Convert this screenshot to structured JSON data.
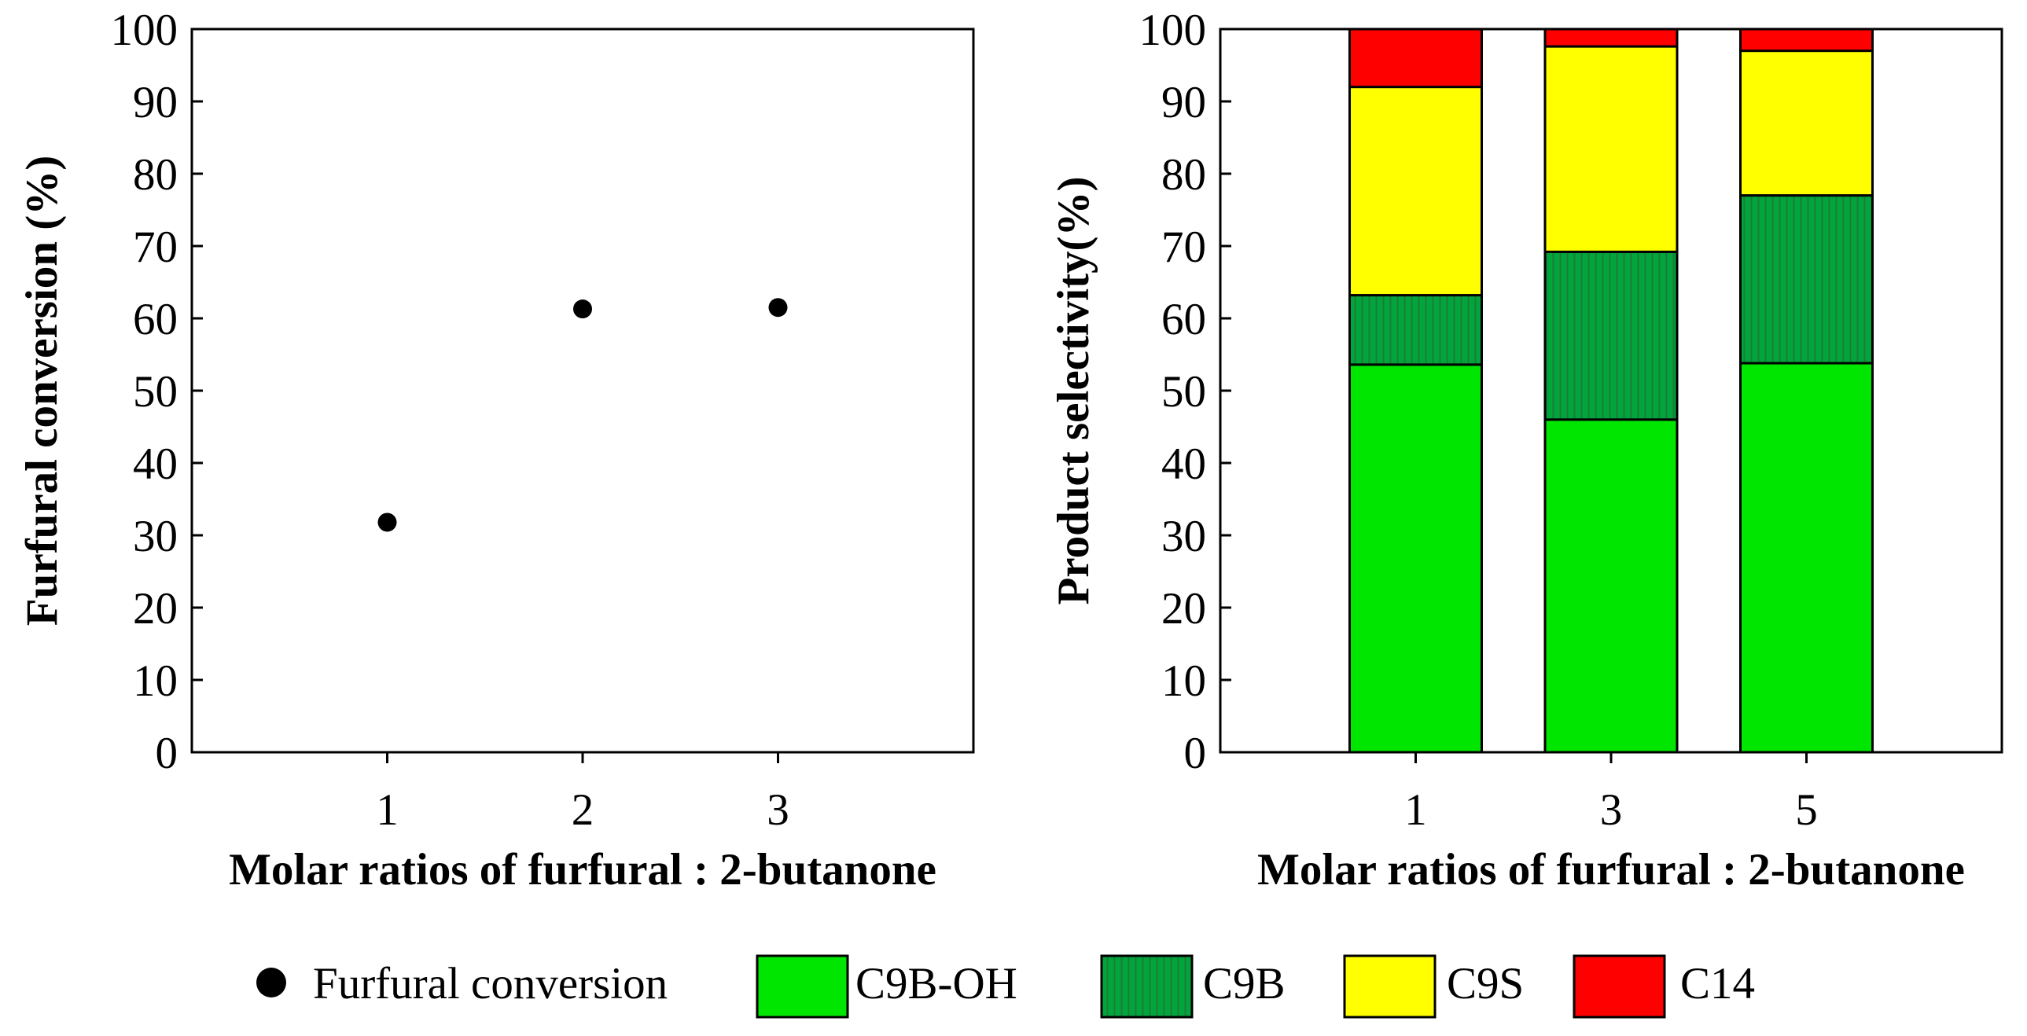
{
  "chart_data": [
    {
      "type": "scatter",
      "xlabel": "Molar ratios of furfural : 2-butanone",
      "ylabel": "Furfural conversion (%)",
      "xticks": [
        "1",
        "2",
        "3"
      ],
      "yticks": [
        "0",
        "10",
        "20",
        "30",
        "40",
        "50",
        "60",
        "70",
        "80",
        "90",
        "100"
      ],
      "ylim": [
        0,
        100
      ],
      "series": [
        {
          "name": "Furfural conversion",
          "x": [
            1,
            2,
            3
          ],
          "y": [
            31.8,
            61.3,
            61.5
          ],
          "color": "#000000"
        }
      ]
    },
    {
      "type": "bar",
      "stacked": true,
      "xlabel": "Molar ratios of furfural : 2-butanone",
      "ylabel": "Product selectivity(%)",
      "categories": [
        "1",
        "3",
        "5"
      ],
      "yticks": [
        "0",
        "10",
        "20",
        "30",
        "40",
        "50",
        "60",
        "70",
        "80",
        "90",
        "100"
      ],
      "ylim": [
        0,
        100
      ],
      "series": [
        {
          "name": "C9B-OH",
          "values": [
            53.6,
            46.0,
            53.8
          ],
          "color": "#00e600"
        },
        {
          "name": "C9B",
          "values": [
            9.6,
            23.2,
            23.2
          ],
          "color": "#00a63c",
          "hatch": "vertical"
        },
        {
          "name": "C9S",
          "values": [
            28.8,
            28.4,
            20.0
          ],
          "color": "#ffff00"
        },
        {
          "name": "C14",
          "values": [
            8.0,
            2.4,
            3.0
          ],
          "color": "#ff0000"
        }
      ]
    }
  ],
  "legend": {
    "items": [
      {
        "label": "Furfural conversion",
        "color": "#000000",
        "marker": "circle"
      },
      {
        "label": "C9B-OH",
        "color": "#00e600",
        "marker": "box"
      },
      {
        "label": "C9B",
        "color": "#00a63c",
        "marker": "box-hatch"
      },
      {
        "label": "C9S",
        "color": "#ffff00",
        "marker": "box"
      },
      {
        "label": "C14",
        "color": "#ff0000",
        "marker": "box"
      }
    ]
  }
}
